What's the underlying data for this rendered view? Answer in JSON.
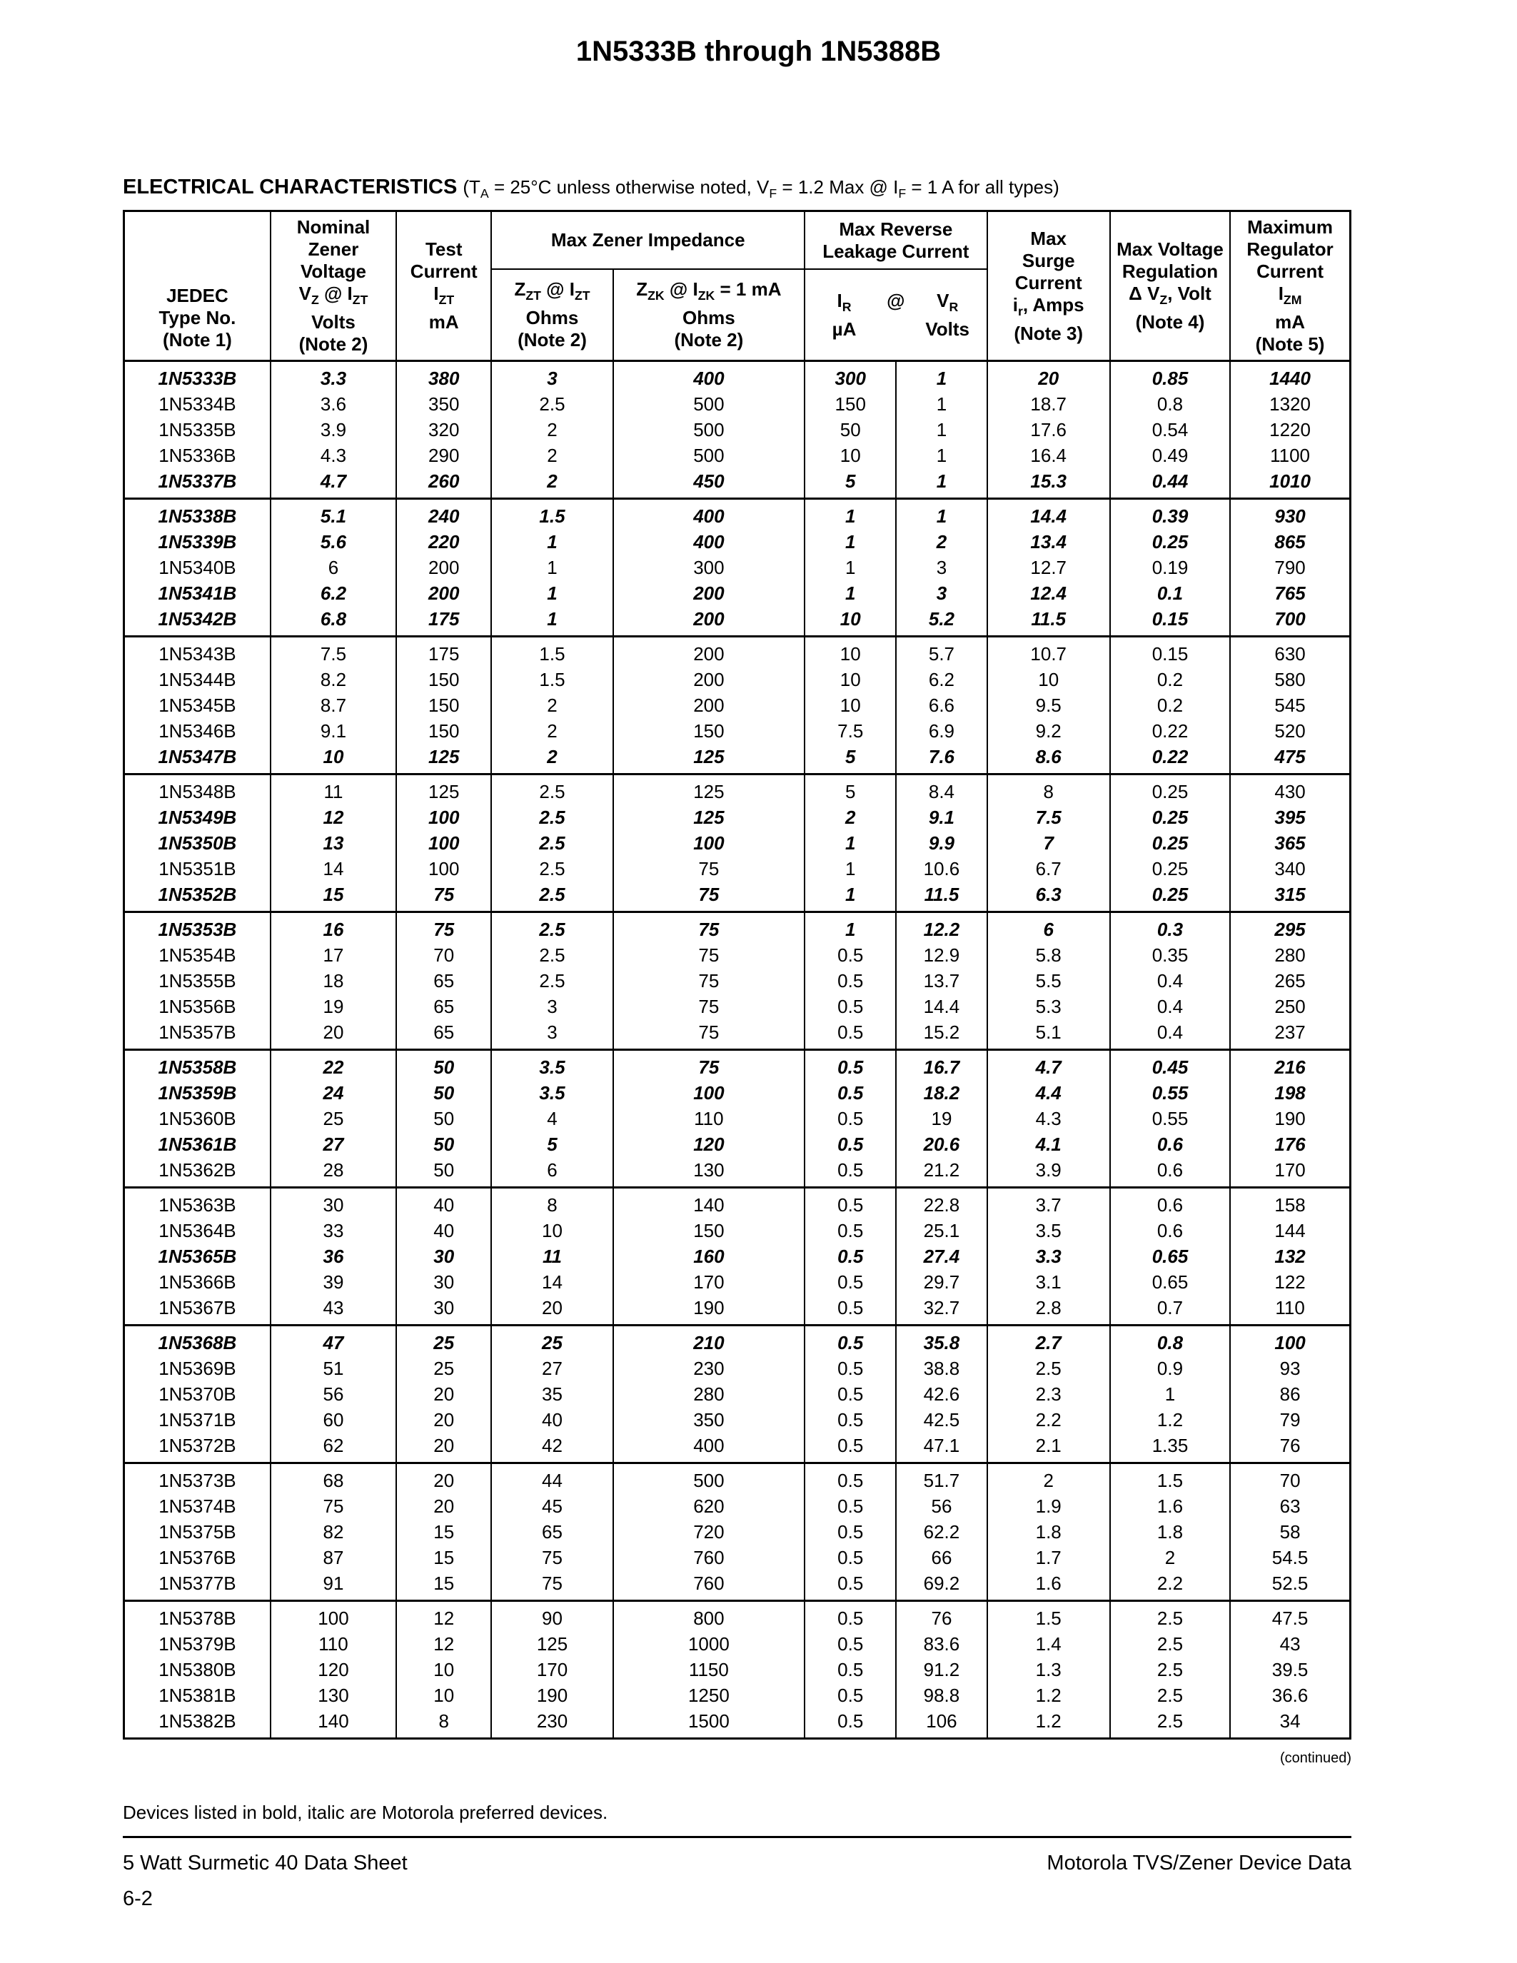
{
  "page": {
    "title": "1N5333B through 1N5388B",
    "heading": "ELECTRICAL CHARACTERISTICS ",
    "heading_condition_html": "(T<sub>A</sub> = 25°C unless otherwise noted, V<sub>F</sub> = 1.2 Max @ I<sub>F</sub> = 1 A for all types)",
    "continued": "(continued)",
    "footnote": "Devices listed in bold, italic are Motorola preferred devices.",
    "footer_left": "5 Watt Surmetic 40 Data Sheet",
    "footer_right": "Motorola TVS/Zener Device Data",
    "page_number": "6-2"
  },
  "table": {
    "headers": {
      "jedec_html": "JEDEC<br>Type No.<br>(Note 1)",
      "nominal_html": "Nominal<br>Zener<br>Voltage<br>V<sub>Z</sub> @ I<sub>ZT</sub><br>Volts<br>(Note 2)",
      "test_current_html": "Test<br>Current<br>I<sub>ZT</sub><br>mA",
      "impedance_group": "Max Zener Impedance",
      "zzt_html": "Z<sub>ZT</sub> @ I<sub>ZT</sub><br>Ohms<br>(Note 2)",
      "zzk_html": "Z<sub>ZK</sub> @ I<sub>ZK</sub> = 1 mA<br>Ohms<br>(Note 2)",
      "leakage_group_html": "Max Reverse<br>Leakage Current",
      "ir_html": "I<sub>R</sub><br>µA",
      "at_symbol": "@",
      "vr_html": "V<sub>R</sub><br>Volts",
      "surge_html": "Max<br>Surge<br>Current<br>i<sub>r</sub>, Amps<br>(Note 3)",
      "regulation_html": "Max Voltage<br>Regulation<br>Δ V<sub>Z</sub>, Volt<br>(Note 4)",
      "izm_html": "Maximum<br>Regulator<br>Current<br>I<sub>ZM</sub><br>mA<br>(Note 5)"
    },
    "groups": [
      {
        "rows": [
          {
            "preferred": true,
            "cells": [
              "1N5333B",
              "3.3",
              "380",
              "3",
              "400",
              "300",
              "1",
              "20",
              "0.85",
              "1440"
            ]
          },
          {
            "preferred": false,
            "cells": [
              "1N5334B",
              "3.6",
              "350",
              "2.5",
              "500",
              "150",
              "1",
              "18.7",
              "0.8",
              "1320"
            ]
          },
          {
            "preferred": false,
            "cells": [
              "1N5335B",
              "3.9",
              "320",
              "2",
              "500",
              "50",
              "1",
              "17.6",
              "0.54",
              "1220"
            ]
          },
          {
            "preferred": false,
            "cells": [
              "1N5336B",
              "4.3",
              "290",
              "2",
              "500",
              "10",
              "1",
              "16.4",
              "0.49",
              "1100"
            ]
          },
          {
            "preferred": true,
            "cells": [
              "1N5337B",
              "4.7",
              "260",
              "2",
              "450",
              "5",
              "1",
              "15.3",
              "0.44",
              "1010"
            ]
          }
        ]
      },
      {
        "rows": [
          {
            "preferred": true,
            "cells": [
              "1N5338B",
              "5.1",
              "240",
              "1.5",
              "400",
              "1",
              "1",
              "14.4",
              "0.39",
              "930"
            ]
          },
          {
            "preferred": true,
            "cells": [
              "1N5339B",
              "5.6",
              "220",
              "1",
              "400",
              "1",
              "2",
              "13.4",
              "0.25",
              "865"
            ]
          },
          {
            "preferred": false,
            "cells": [
              "1N5340B",
              "6",
              "200",
              "1",
              "300",
              "1",
              "3",
              "12.7",
              "0.19",
              "790"
            ]
          },
          {
            "preferred": true,
            "cells": [
              "1N5341B",
              "6.2",
              "200",
              "1",
              "200",
              "1",
              "3",
              "12.4",
              "0.1",
              "765"
            ]
          },
          {
            "preferred": true,
            "cells": [
              "1N5342B",
              "6.8",
              "175",
              "1",
              "200",
              "10",
              "5.2",
              "11.5",
              "0.15",
              "700"
            ]
          }
        ]
      },
      {
        "rows": [
          {
            "preferred": false,
            "cells": [
              "1N5343B",
              "7.5",
              "175",
              "1.5",
              "200",
              "10",
              "5.7",
              "10.7",
              "0.15",
              "630"
            ]
          },
          {
            "preferred": false,
            "cells": [
              "1N5344B",
              "8.2",
              "150",
              "1.5",
              "200",
              "10",
              "6.2",
              "10",
              "0.2",
              "580"
            ]
          },
          {
            "preferred": false,
            "cells": [
              "1N5345B",
              "8.7",
              "150",
              "2",
              "200",
              "10",
              "6.6",
              "9.5",
              "0.2",
              "545"
            ]
          },
          {
            "preferred": false,
            "cells": [
              "1N5346B",
              "9.1",
              "150",
              "2",
              "150",
              "7.5",
              "6.9",
              "9.2",
              "0.22",
              "520"
            ]
          },
          {
            "preferred": true,
            "cells": [
              "1N5347B",
              "10",
              "125",
              "2",
              "125",
              "5",
              "7.6",
              "8.6",
              "0.22",
              "475"
            ]
          }
        ]
      },
      {
        "rows": [
          {
            "preferred": false,
            "cells": [
              "1N5348B",
              "11",
              "125",
              "2.5",
              "125",
              "5",
              "8.4",
              "8",
              "0.25",
              "430"
            ]
          },
          {
            "preferred": true,
            "cells": [
              "1N5349B",
              "12",
              "100",
              "2.5",
              "125",
              "2",
              "9.1",
              "7.5",
              "0.25",
              "395"
            ]
          },
          {
            "preferred": true,
            "cells": [
              "1N5350B",
              "13",
              "100",
              "2.5",
              "100",
              "1",
              "9.9",
              "7",
              "0.25",
              "365"
            ]
          },
          {
            "preferred": false,
            "cells": [
              "1N5351B",
              "14",
              "100",
              "2.5",
              "75",
              "1",
              "10.6",
              "6.7",
              "0.25",
              "340"
            ]
          },
          {
            "preferred": true,
            "cells": [
              "1N5352B",
              "15",
              "75",
              "2.5",
              "75",
              "1",
              "11.5",
              "6.3",
              "0.25",
              "315"
            ]
          }
        ]
      },
      {
        "rows": [
          {
            "preferred": true,
            "cells": [
              "1N5353B",
              "16",
              "75",
              "2.5",
              "75",
              "1",
              "12.2",
              "6",
              "0.3",
              "295"
            ]
          },
          {
            "preferred": false,
            "cells": [
              "1N5354B",
              "17",
              "70",
              "2.5",
              "75",
              "0.5",
              "12.9",
              "5.8",
              "0.35",
              "280"
            ]
          },
          {
            "preferred": false,
            "cells": [
              "1N5355B",
              "18",
              "65",
              "2.5",
              "75",
              "0.5",
              "13.7",
              "5.5",
              "0.4",
              "265"
            ]
          },
          {
            "preferred": false,
            "cells": [
              "1N5356B",
              "19",
              "65",
              "3",
              "75",
              "0.5",
              "14.4",
              "5.3",
              "0.4",
              "250"
            ]
          },
          {
            "preferred": false,
            "cells": [
              "1N5357B",
              "20",
              "65",
              "3",
              "75",
              "0.5",
              "15.2",
              "5.1",
              "0.4",
              "237"
            ]
          }
        ]
      },
      {
        "rows": [
          {
            "preferred": true,
            "cells": [
              "1N5358B",
              "22",
              "50",
              "3.5",
              "75",
              "0.5",
              "16.7",
              "4.7",
              "0.45",
              "216"
            ]
          },
          {
            "preferred": true,
            "cells": [
              "1N5359B",
              "24",
              "50",
              "3.5",
              "100",
              "0.5",
              "18.2",
              "4.4",
              "0.55",
              "198"
            ]
          },
          {
            "preferred": false,
            "cells": [
              "1N5360B",
              "25",
              "50",
              "4",
              "110",
              "0.5",
              "19",
              "4.3",
              "0.55",
              "190"
            ]
          },
          {
            "preferred": true,
            "cells": [
              "1N5361B",
              "27",
              "50",
              "5",
              "120",
              "0.5",
              "20.6",
              "4.1",
              "0.6",
              "176"
            ]
          },
          {
            "preferred": false,
            "cells": [
              "1N5362B",
              "28",
              "50",
              "6",
              "130",
              "0.5",
              "21.2",
              "3.9",
              "0.6",
              "170"
            ]
          }
        ]
      },
      {
        "rows": [
          {
            "preferred": false,
            "cells": [
              "1N5363B",
              "30",
              "40",
              "8",
              "140",
              "0.5",
              "22.8",
              "3.7",
              "0.6",
              "158"
            ]
          },
          {
            "preferred": false,
            "cells": [
              "1N5364B",
              "33",
              "40",
              "10",
              "150",
              "0.5",
              "25.1",
              "3.5",
              "0.6",
              "144"
            ]
          },
          {
            "preferred": true,
            "cells": [
              "1N5365B",
              "36",
              "30",
              "11",
              "160",
              "0.5",
              "27.4",
              "3.3",
              "0.65",
              "132"
            ]
          },
          {
            "preferred": false,
            "cells": [
              "1N5366B",
              "39",
              "30",
              "14",
              "170",
              "0.5",
              "29.7",
              "3.1",
              "0.65",
              "122"
            ]
          },
          {
            "preferred": false,
            "cells": [
              "1N5367B",
              "43",
              "30",
              "20",
              "190",
              "0.5",
              "32.7",
              "2.8",
              "0.7",
              "110"
            ]
          }
        ]
      },
      {
        "rows": [
          {
            "preferred": true,
            "cells": [
              "1N5368B",
              "47",
              "25",
              "25",
              "210",
              "0.5",
              "35.8",
              "2.7",
              "0.8",
              "100"
            ]
          },
          {
            "preferred": false,
            "cells": [
              "1N5369B",
              "51",
              "25",
              "27",
              "230",
              "0.5",
              "38.8",
              "2.5",
              "0.9",
              "93"
            ]
          },
          {
            "preferred": false,
            "cells": [
              "1N5370B",
              "56",
              "20",
              "35",
              "280",
              "0.5",
              "42.6",
              "2.3",
              "1",
              "86"
            ]
          },
          {
            "preferred": false,
            "cells": [
              "1N5371B",
              "60",
              "20",
              "40",
              "350",
              "0.5",
              "42.5",
              "2.2",
              "1.2",
              "79"
            ]
          },
          {
            "preferred": false,
            "cells": [
              "1N5372B",
              "62",
              "20",
              "42",
              "400",
              "0.5",
              "47.1",
              "2.1",
              "1.35",
              "76"
            ]
          }
        ]
      },
      {
        "rows": [
          {
            "preferred": false,
            "cells": [
              "1N5373B",
              "68",
              "20",
              "44",
              "500",
              "0.5",
              "51.7",
              "2",
              "1.5",
              "70"
            ]
          },
          {
            "preferred": false,
            "cells": [
              "1N5374B",
              "75",
              "20",
              "45",
              "620",
              "0.5",
              "56",
              "1.9",
              "1.6",
              "63"
            ]
          },
          {
            "preferred": false,
            "cells": [
              "1N5375B",
              "82",
              "15",
              "65",
              "720",
              "0.5",
              "62.2",
              "1.8",
              "1.8",
              "58"
            ]
          },
          {
            "preferred": false,
            "cells": [
              "1N5376B",
              "87",
              "15",
              "75",
              "760",
              "0.5",
              "66",
              "1.7",
              "2",
              "54.5"
            ]
          },
          {
            "preferred": false,
            "cells": [
              "1N5377B",
              "91",
              "15",
              "75",
              "760",
              "0.5",
              "69.2",
              "1.6",
              "2.2",
              "52.5"
            ]
          }
        ]
      },
      {
        "rows": [
          {
            "preferred": false,
            "cells": [
              "1N5378B",
              "100",
              "12",
              "90",
              "800",
              "0.5",
              "76",
              "1.5",
              "2.5",
              "47.5"
            ]
          },
          {
            "preferred": false,
            "cells": [
              "1N5379B",
              "110",
              "12",
              "125",
              "1000",
              "0.5",
              "83.6",
              "1.4",
              "2.5",
              "43"
            ]
          },
          {
            "preferred": false,
            "cells": [
              "1N5380B",
              "120",
              "10",
              "170",
              "1150",
              "0.5",
              "91.2",
              "1.3",
              "2.5",
              "39.5"
            ]
          },
          {
            "preferred": false,
            "cells": [
              "1N5381B",
              "130",
              "10",
              "190",
              "1250",
              "0.5",
              "98.8",
              "1.2",
              "2.5",
              "36.6"
            ]
          },
          {
            "preferred": false,
            "cells": [
              "1N5382B",
              "140",
              "8",
              "230",
              "1500",
              "0.5",
              "106",
              "1.2",
              "2.5",
              "34"
            ]
          }
        ]
      }
    ]
  }
}
